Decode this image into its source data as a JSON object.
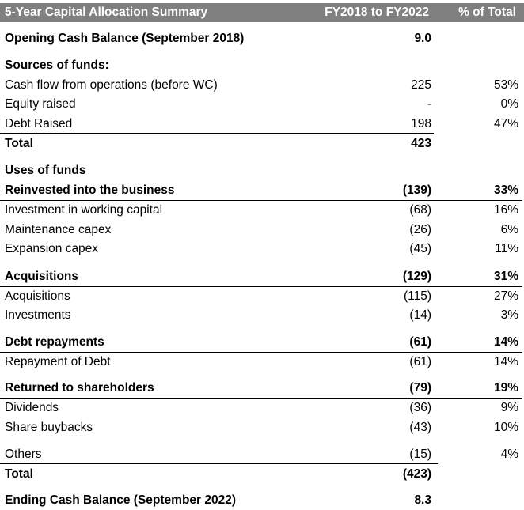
{
  "table": {
    "header": {
      "title": "5-Year Capital Allocation Summary",
      "period": "FY2018 to FY2022",
      "pct": "% of Total"
    },
    "rows": [
      {
        "label": "Opening Cash Balance (September 2018)",
        "value": "9.0",
        "pct": ""
      },
      {
        "label": "Sources of funds:",
        "value": "",
        "pct": ""
      },
      {
        "label": "Cash flow from operations (before WC)",
        "value": "225",
        "pct": "53%"
      },
      {
        "label": "Equity raised",
        "value": "-",
        "pct": "0%"
      },
      {
        "label": "Debt Raised",
        "value": "198",
        "pct": "47%"
      },
      {
        "label": "Total",
        "value": "423",
        "pct": ""
      },
      {
        "label": "Uses of funds",
        "value": "",
        "pct": ""
      },
      {
        "label": "Reinvested into the business",
        "value": "(139)",
        "pct": "33%"
      },
      {
        "label": "Investment in working capital",
        "value": "(68)",
        "pct": "16%"
      },
      {
        "label": "Maintenance capex",
        "value": "(26)",
        "pct": "6%"
      },
      {
        "label": "Expansion capex",
        "value": "(45)",
        "pct": "11%"
      },
      {
        "label": "Acquisitions",
        "value": "(129)",
        "pct": "31%"
      },
      {
        "label": "Acquisitions",
        "value": "(115)",
        "pct": "27%"
      },
      {
        "label": "Investments",
        "value": "(14)",
        "pct": "3%"
      },
      {
        "label": "Debt repayments",
        "value": "(61)",
        "pct": "14%"
      },
      {
        "label": "Repayment of Debt",
        "value": "(61)",
        "pct": "14%"
      },
      {
        "label": "Returned to shareholders",
        "value": "(79)",
        "pct": "19%"
      },
      {
        "label": "Dividends",
        "value": "(36)",
        "pct": "9%"
      },
      {
        "label": "Share buybacks",
        "value": "(43)",
        "pct": "10%"
      },
      {
        "label": "Others",
        "value": "(15)",
        "pct": "4%"
      },
      {
        "label": "Total",
        "value": "(423)",
        "pct": ""
      },
      {
        "label": "Ending Cash Balance (September 2022)",
        "value": "8.3",
        "pct": ""
      }
    ]
  }
}
